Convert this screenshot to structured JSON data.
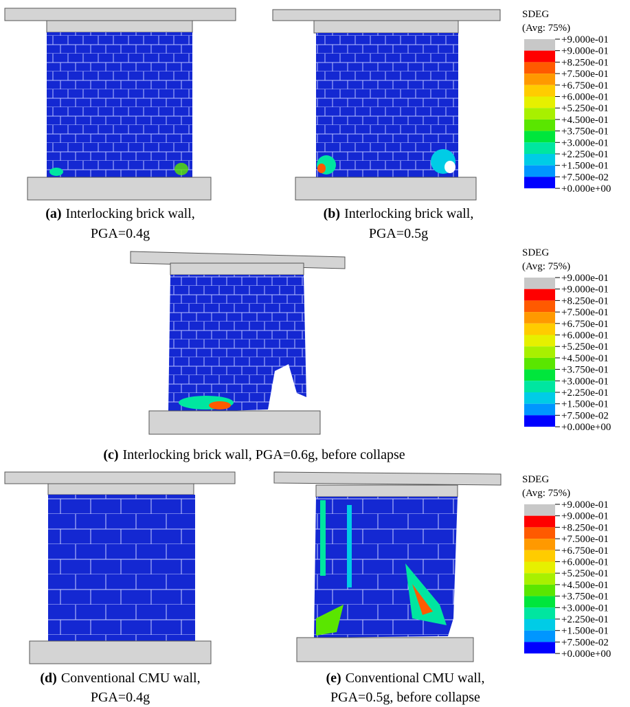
{
  "panels": [
    {
      "tag": "(a)",
      "caption": [
        "Interlocking brick wall,",
        "PGA=0.4g"
      ]
    },
    {
      "tag": "(b)",
      "caption": [
        "Interlocking brick wall,",
        "PGA=0.5g"
      ]
    },
    {
      "tag": "(c)",
      "caption": [
        "Interlocking brick wall, PGA=0.6g, before collapse"
      ]
    },
    {
      "tag": "(d)",
      "caption": [
        "Conventional CMU wall,",
        "PGA=0.4g"
      ]
    },
    {
      "tag": "(e)",
      "caption": [
        "Conventional CMU wall,",
        "PGA=0.5g, before collapse"
      ]
    }
  ],
  "legend_colors": [
    "#c8c8c8",
    "#ff0000",
    "#ff5a00",
    "#ff9900",
    "#ffcc00",
    "#e6f000",
    "#a8f000",
    "#5ae600",
    "#00e63c",
    "#00e6a0",
    "#00cce6",
    "#0096ff",
    "#0000ff"
  ],
  "legends": [
    {
      "title": "SDEG",
      "subtitle": "(Avg: 75%)",
      "labels": [
        "+9.000e-01",
        "+9.000e-01",
        "+8.250e-01",
        "+7.500e-01",
        "+6.750e-01",
        "+6.000e-01",
        "+5.250e-01",
        "+4.500e-01",
        "+3.750e-01",
        "+3.000e-01",
        "+2.250e-01",
        "+1.500e-01",
        "+7.500e-02",
        "+0.000e+00"
      ]
    },
    {
      "title": "SDEG",
      "subtitle": "(Avg: 75%)",
      "labels": [
        "+9.000e-01",
        "+9.000e-01",
        "+8.250e-01",
        "+7.500e-01",
        "+6.750e-01",
        "+6.000e-01",
        "+5.250e-01",
        "+4.500e-01",
        "+3.750e-01",
        "+3.000e-01",
        "+2.250e-01",
        "+1.500e-01",
        "+7.500e-02",
        "+0.000e+00"
      ]
    },
    {
      "title": "SDEG",
      "subtitle": "(Avg: 75%)",
      "labels": [
        "+9.000e-01",
        "+9.000e-01",
        "+8.250e-01",
        "+7.500e-01",
        "+6.750e-01",
        "+6.000e-01",
        "+5.250e-01",
        "+4.500e-01",
        "+3.750e-01",
        "+3.000e-01",
        "+2.250e-01",
        "+1.500e-01",
        "+7.500e-02",
        "+0.000e+00"
      ]
    }
  ]
}
